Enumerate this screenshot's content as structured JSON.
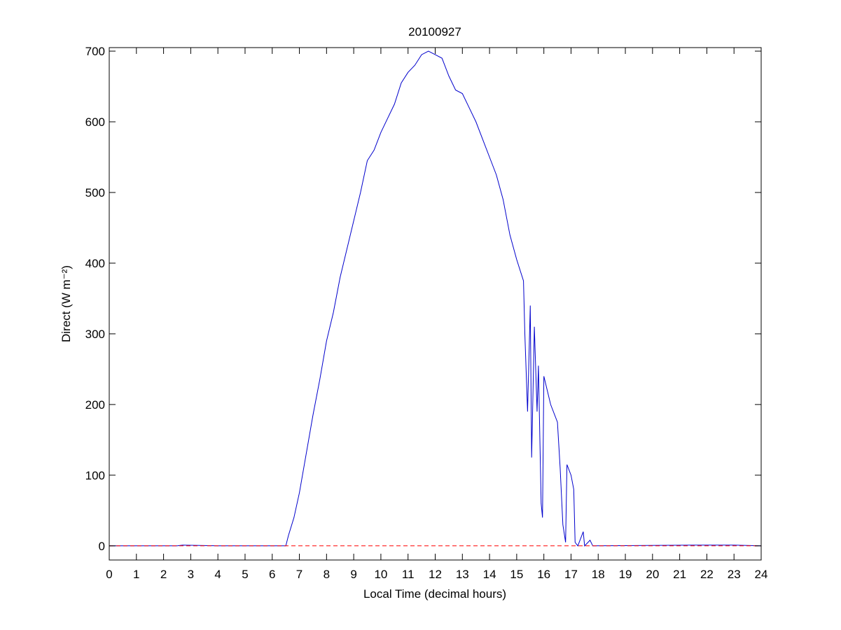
{
  "chart_data": {
    "type": "line",
    "title": "20100927",
    "xlabel": "Local Time (decimal hours)",
    "ylabel": "Direct (W m⁻²)",
    "x": [
      0,
      2.5,
      2.7,
      4,
      6,
      6.5,
      6.6,
      6.8,
      7,
      7.25,
      7.5,
      7.75,
      8,
      8.25,
      8.5,
      8.75,
      9,
      9.25,
      9.5,
      9.75,
      10,
      10.25,
      10.5,
      10.75,
      11,
      11.25,
      11.5,
      11.75,
      12,
      12.25,
      12.5,
      12.75,
      13,
      13.25,
      13.5,
      13.75,
      14,
      14.25,
      14.5,
      14.75,
      15,
      15.25,
      15.3,
      15.4,
      15.5,
      15.55,
      15.65,
      15.75,
      15.8,
      15.9,
      15.95,
      16,
      16.25,
      16.5,
      16.6,
      16.7,
      16.8,
      16.85,
      17,
      17.1,
      17.15,
      17.25,
      17.45,
      17.5,
      17.7,
      17.8,
      21.5,
      23,
      24
    ],
    "series": [
      {
        "color": "#0000cc",
        "style": "solid",
        "values": [
          0,
          0,
          1,
          0,
          0,
          0,
          15,
          40,
          75,
          130,
          185,
          235,
          290,
          330,
          380,
          420,
          460,
          500,
          545,
          560,
          585,
          605,
          625,
          655,
          670,
          680,
          695,
          700,
          695,
          690,
          665,
          645,
          640,
          620,
          600,
          575,
          550,
          525,
          490,
          440,
          405,
          375,
          300,
          190,
          340,
          125,
          310,
          190,
          255,
          60,
          40,
          240,
          200,
          175,
          110,
          30,
          5,
          115,
          100,
          80,
          5,
          0,
          20,
          0,
          8,
          0,
          1,
          1,
          0
        ]
      },
      {
        "color": "#ff0000",
        "style": "dashed",
        "values": [
          0,
          0,
          0,
          0,
          0,
          0,
          0,
          0,
          0,
          0,
          0,
          0,
          0,
          0,
          0,
          0,
          0,
          0,
          0,
          0,
          0,
          0,
          0,
          0,
          0,
          0,
          0,
          0,
          0,
          0,
          0,
          0,
          0,
          0,
          0,
          0,
          0,
          0,
          0,
          0,
          0,
          0,
          0,
          0,
          0,
          0,
          0,
          0,
          0,
          0,
          0,
          0,
          0,
          0,
          0,
          0,
          0,
          0,
          0,
          0,
          0,
          0,
          0,
          0,
          0,
          0,
          0,
          0,
          0
        ]
      }
    ],
    "xlim": [
      0,
      24
    ],
    "xticks": [
      0,
      1,
      2,
      3,
      4,
      5,
      6,
      7,
      8,
      9,
      10,
      11,
      12,
      13,
      14,
      15,
      16,
      17,
      18,
      19,
      20,
      21,
      22,
      23,
      24
    ],
    "ylim": [
      -20,
      705
    ],
    "yticks": [
      0,
      100,
      200,
      300,
      400,
      500,
      600,
      700
    ],
    "grid": false
  }
}
